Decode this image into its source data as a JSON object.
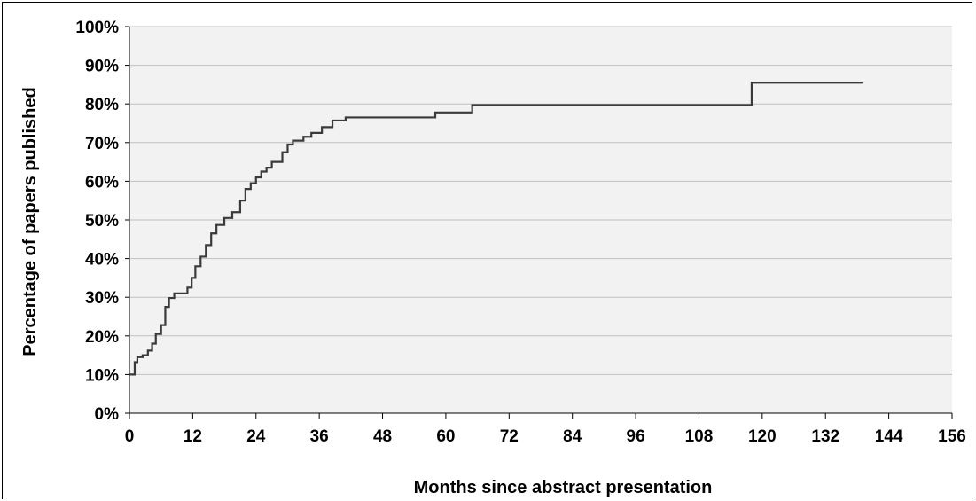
{
  "chart_data": {
    "type": "line",
    "step": true,
    "title": "",
    "xlabel": "Months since abstract presentation",
    "ylabel": "Percentage of papers published",
    "xlim": [
      0,
      156
    ],
    "ylim": [
      0,
      100
    ],
    "x_ticks": [
      0,
      12,
      24,
      36,
      48,
      60,
      72,
      84,
      96,
      108,
      120,
      132,
      144,
      156
    ],
    "x_tick_labels": [
      "0",
      "12",
      "24",
      "36",
      "48",
      "60",
      "72",
      "84",
      "96",
      "108",
      "120",
      "132",
      "144",
      "156"
    ],
    "y_ticks": [
      0,
      10,
      20,
      30,
      40,
      50,
      60,
      70,
      80,
      90,
      100
    ],
    "y_tick_labels": [
      "0%",
      "10%",
      "20%",
      "30%",
      "40%",
      "50%",
      "60%",
      "70%",
      "80%",
      "90%",
      "100%"
    ],
    "grid": "horizontal",
    "plot_background": "#f2f2f2",
    "grid_color": "#bfbfbf",
    "line_color": "#3a3a3a",
    "series": [
      {
        "x": [
          0,
          1,
          1.5,
          2.5,
          3.5,
          4.3,
          5,
          6,
          6.8,
          7.5,
          8.5,
          11,
          11.8,
          12.5,
          13.5,
          14.5,
          15.5,
          16.5,
          18,
          19.5,
          21,
          22,
          23,
          24,
          25,
          26,
          27,
          29,
          30,
          31,
          33,
          34.5,
          36.5,
          38.5,
          41,
          45,
          58,
          65,
          118,
          139
        ],
        "y": [
          10,
          13.2,
          14.5,
          15,
          16.2,
          18,
          20.5,
          22.8,
          27.5,
          29.8,
          31,
          32.5,
          35,
          38,
          40.5,
          43.5,
          46.5,
          48.7,
          50.5,
          52,
          55,
          58,
          59.5,
          61,
          62.5,
          63.5,
          65,
          67.5,
          69.5,
          70.5,
          71.5,
          72.5,
          74,
          75.7,
          76.5,
          76.5,
          77.8,
          79.7,
          85.5,
          85.5
        ]
      }
    ]
  }
}
